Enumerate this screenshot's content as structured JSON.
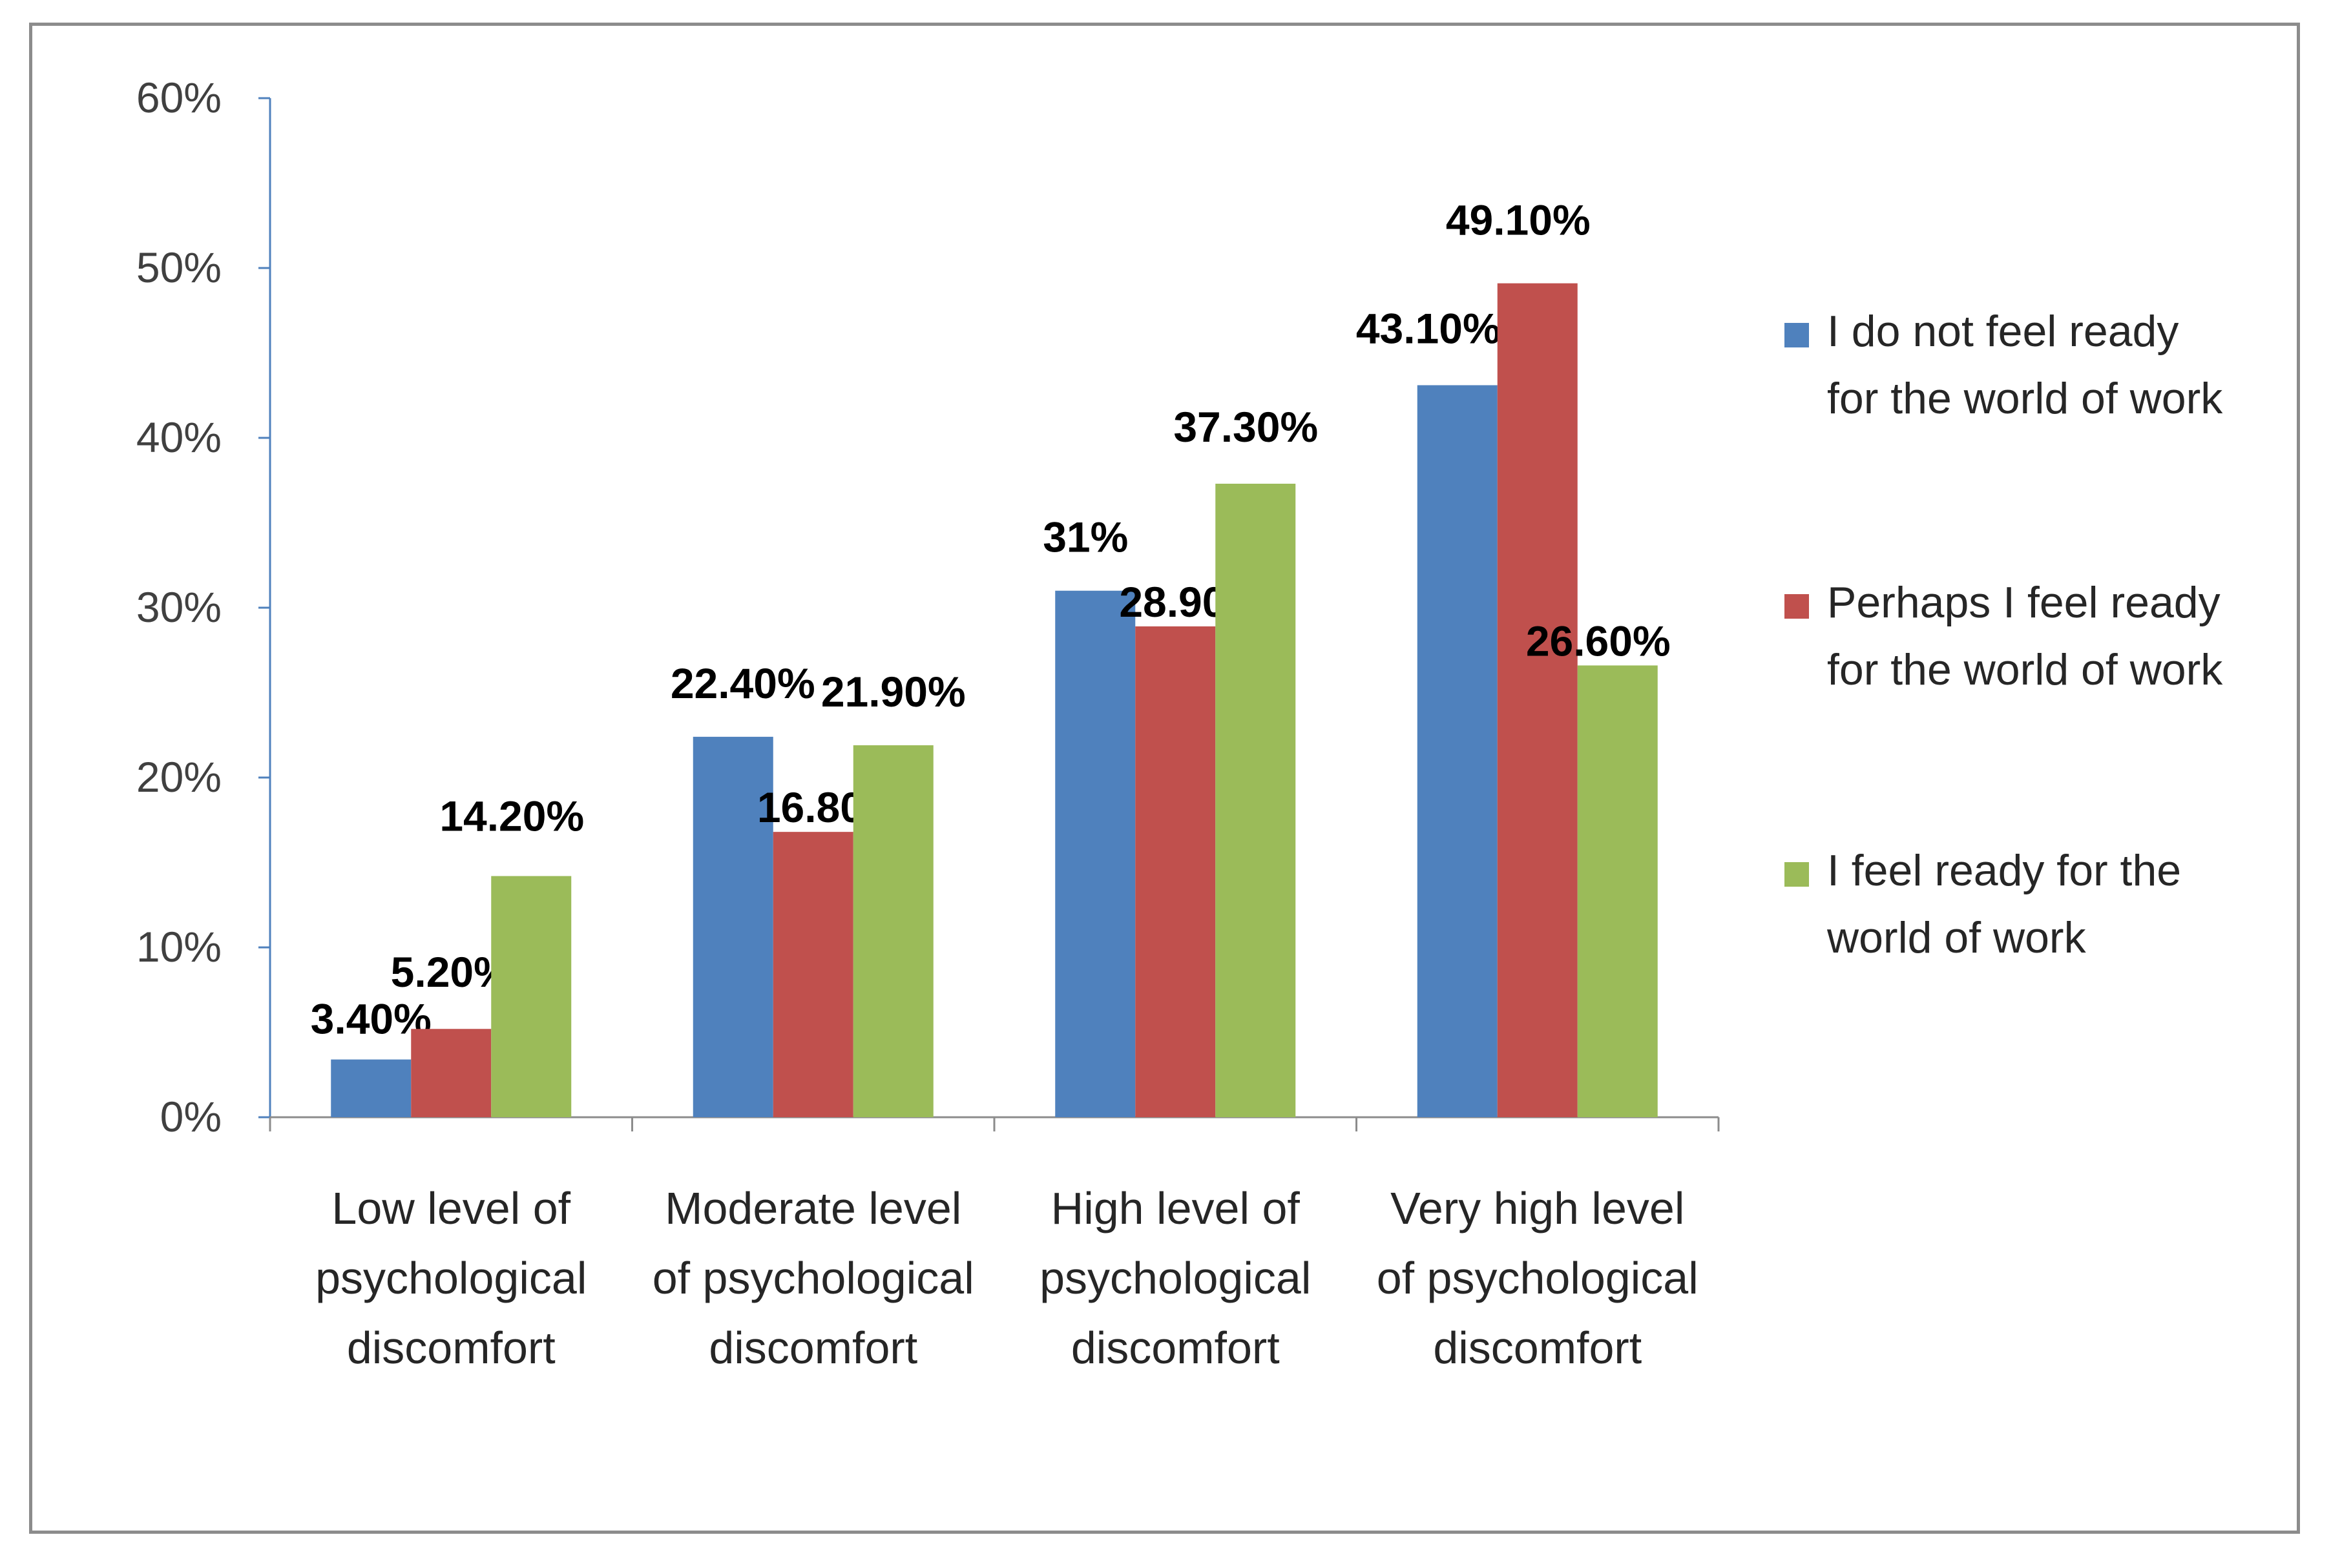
{
  "chart_data": {
    "type": "bar",
    "title": "",
    "xlabel": "",
    "ylabel": "",
    "ylim": [
      0,
      60
    ],
    "yticks": [
      "0%",
      "10%",
      "20%",
      "30%",
      "40%",
      "50%",
      "60%"
    ],
    "categories": [
      [
        "Low level of",
        "psychological",
        "discomfort"
      ],
      [
        "Moderate level",
        "of psychological",
        "discomfort"
      ],
      [
        "High level of",
        "psychological",
        "discomfort"
      ],
      [
        "Very high level",
        "of psychological",
        "discomfort"
      ]
    ],
    "series": [
      {
        "name": [
          "I do not feel ready",
          "for the world of work"
        ],
        "color": "#4f81bd",
        "values": [
          3.4,
          22.4,
          31,
          43.1
        ],
        "labels": [
          "3.40%",
          "22.40%",
          "31%",
          "43.10%"
        ]
      },
      {
        "name": [
          "Perhaps I feel ready",
          "for the world of work"
        ],
        "color": "#c0504d",
        "values": [
          5.2,
          16.8,
          28.9,
          49.1
        ],
        "labels": [
          "5.20%",
          "16.80%",
          "28.90%",
          "49.10%"
        ]
      },
      {
        "name": [
          "I feel ready for the",
          "world of work"
        ],
        "color": "#9bbb59",
        "values": [
          14.2,
          21.9,
          37.3,
          26.6
        ],
        "labels": [
          "14.20%",
          "21.90%",
          "37.30%",
          "26.60%"
        ]
      }
    ],
    "grid": false,
    "legend_position": "right"
  }
}
